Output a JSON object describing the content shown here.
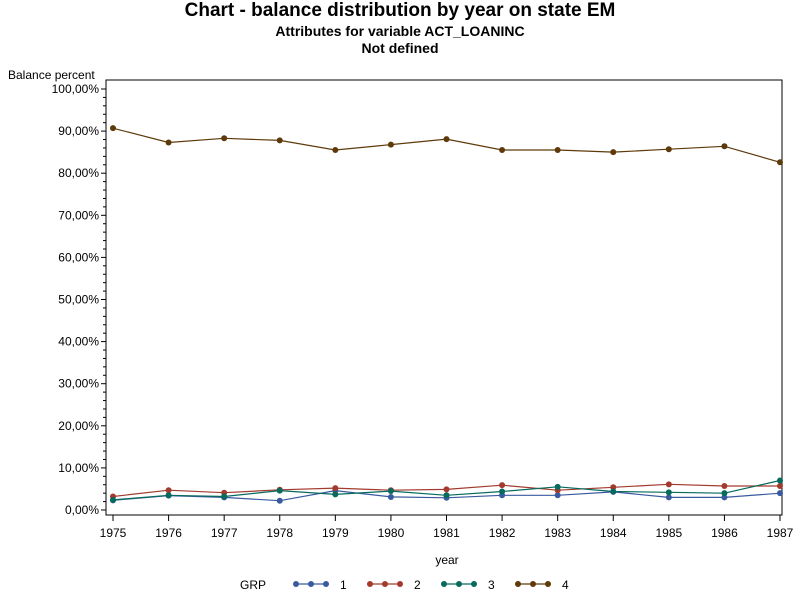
{
  "header": {
    "title": "Chart - balance distribution by year on state EM",
    "subtitle": "Attributes for variable ACT_LOANINC",
    "subtitle2": "Not defined"
  },
  "chart_data": {
    "type": "line",
    "title": "Chart - balance distribution by year on state EM",
    "xlabel": "year",
    "ylabel": "Balance percent",
    "x": [
      1975,
      1976,
      1977,
      1978,
      1979,
      1980,
      1981,
      1982,
      1983,
      1984,
      1985,
      1986,
      1987
    ],
    "ylim": [
      0,
      100
    ],
    "yticks": [
      "0,00%",
      "10,00%",
      "20,00%",
      "30,00%",
      "40,00%",
      "50,00%",
      "60,00%",
      "70,00%",
      "80,00%",
      "90,00%",
      "100,00%"
    ],
    "grid": false,
    "legend_title": "GRP",
    "legend_position": "bottom",
    "series": [
      {
        "name": "1",
        "color": "#3a5aa0",
        "values": [
          2.3,
          3.4,
          3.0,
          2.2,
          4.6,
          3.1,
          2.9,
          3.5,
          3.5,
          4.3,
          3.0,
          3.0,
          4.0
        ]
      },
      {
        "name": "2",
        "color": "#a23a2e",
        "values": [
          3.2,
          4.7,
          4.1,
          4.8,
          5.2,
          4.7,
          4.9,
          5.9,
          4.7,
          5.4,
          6.1,
          5.7,
          5.7
        ]
      },
      {
        "name": "3",
        "color": "#066a5c",
        "values": [
          2.4,
          3.5,
          3.2,
          4.6,
          3.7,
          4.5,
          3.5,
          4.4,
          5.5,
          4.4,
          4.2,
          4.0,
          7.0
        ]
      },
      {
        "name": "4",
        "color": "#5e3a0a",
        "values": [
          90.7,
          87.3,
          88.3,
          87.8,
          85.5,
          86.8,
          88.1,
          85.5,
          85.5,
          85.0,
          85.7,
          86.4,
          82.6
        ]
      }
    ]
  }
}
